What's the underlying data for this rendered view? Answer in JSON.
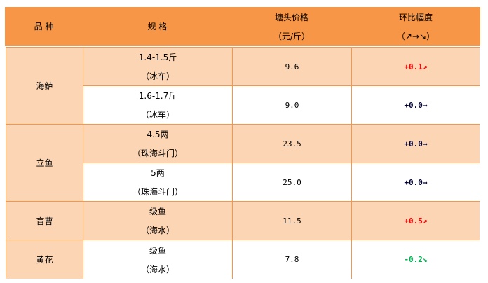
{
  "header": {
    "variety": "品 种",
    "spec": "规 格",
    "price_line1": "塘头价格",
    "price_line2": "（元/斤）",
    "change_line1": "环比幅度",
    "change_line2": "（↗→↘）"
  },
  "colors": {
    "header_bg": "#f79646",
    "row_bg": "#fcd5b5",
    "up": "#ff0000",
    "flat": "#000033",
    "down": "#00b050"
  },
  "groups": [
    {
      "variety": "海鲈",
      "rows": [
        {
          "spec1": "1.4-1.5斤",
          "spec2": "（冰车）",
          "price": "9.6",
          "change": "+0.1↗",
          "trend": "up"
        },
        {
          "spec1": "1.6-1.7斤",
          "spec2": "（冰车）",
          "price": "9.0",
          "change": "+0.0→",
          "trend": "flat"
        }
      ]
    },
    {
      "variety": "立鱼",
      "rows": [
        {
          "spec1": "4.5两",
          "spec2": "（珠海斗门）",
          "price": "23.5",
          "change": "+0.0→",
          "trend": "flat"
        },
        {
          "spec1": "5两",
          "spec2": "（珠海斗门）",
          "price": "25.0",
          "change": "+0.0→",
          "trend": "flat"
        }
      ]
    },
    {
      "variety": "盲曹",
      "rows": [
        {
          "spec1": "级鱼",
          "spec2": "（海水）",
          "price": "11.5",
          "change": "+0.5↗",
          "trend": "up"
        }
      ]
    },
    {
      "variety": "黄花",
      "rows": [
        {
          "spec1": "级鱼",
          "spec2": "（海水）",
          "price": "7.8",
          "change": "-0.2↘",
          "trend": "down"
        }
      ]
    }
  ]
}
